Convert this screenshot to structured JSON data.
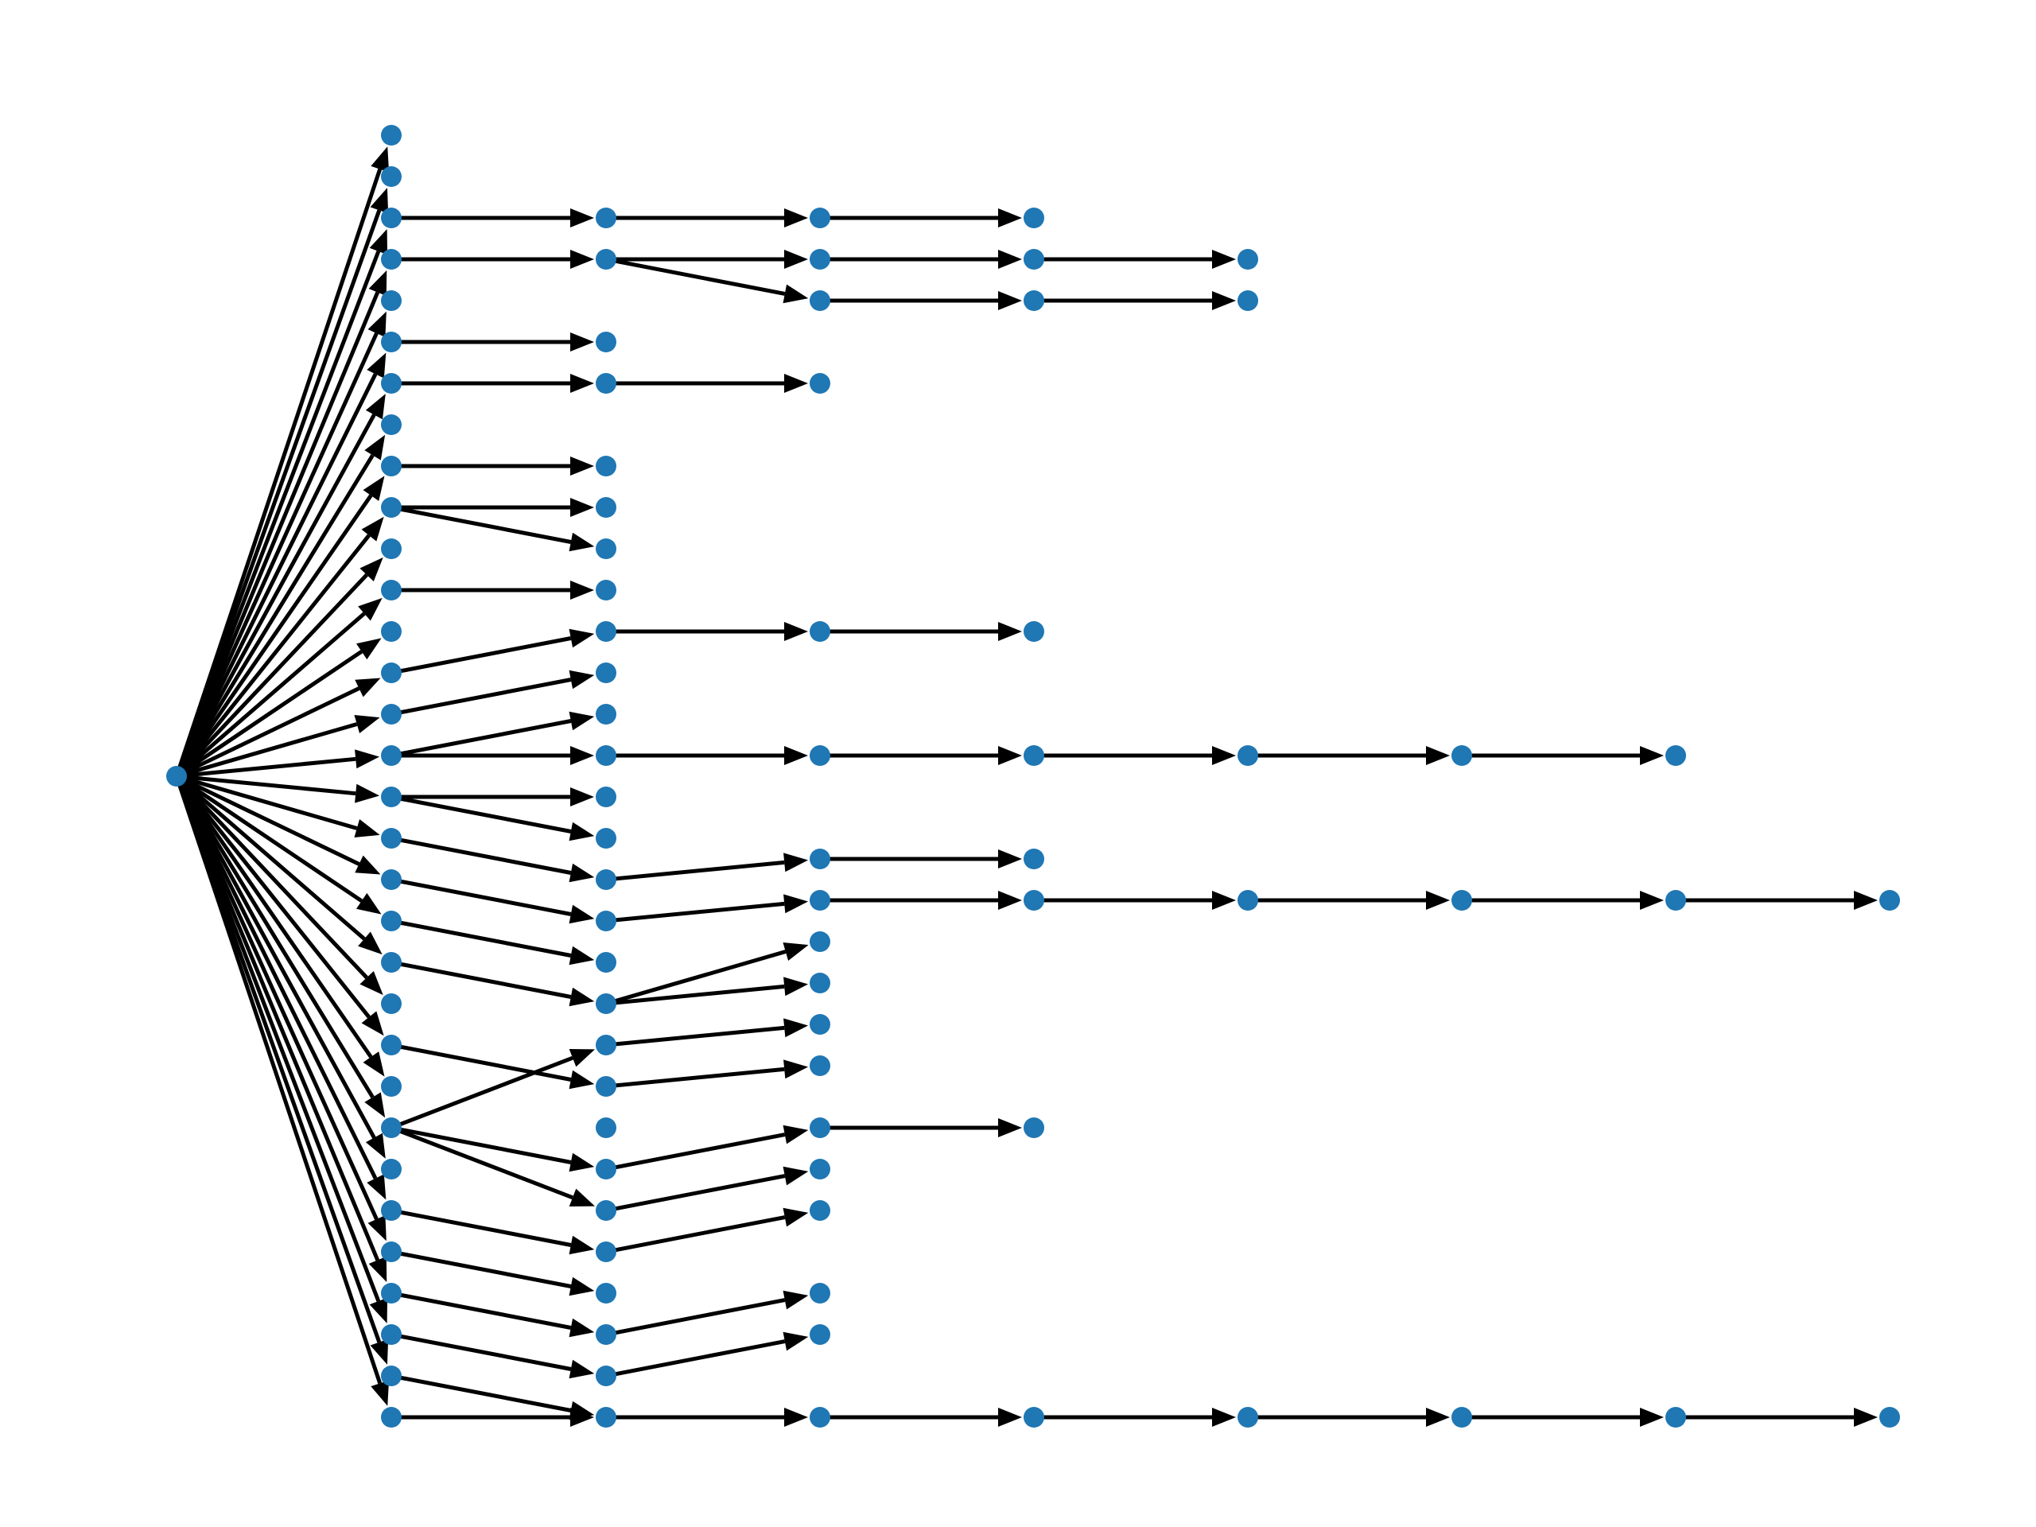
{
  "diagram": {
    "type": "directed-tree",
    "colors": {
      "node": "#1f77b4",
      "edge": "#000000",
      "background": "#ffffff"
    },
    "root": "root",
    "nodes": [
      {
        "id": "root",
        "label": "",
        "depth": 0,
        "row": 15.5
      },
      {
        "id": "d1_0",
        "label": "",
        "depth": 1,
        "row": 0
      },
      {
        "id": "d1_1",
        "label": "",
        "depth": 1,
        "row": 1
      },
      {
        "id": "d1_2",
        "label": "",
        "depth": 1,
        "row": 2
      },
      {
        "id": "d1_3",
        "label": "",
        "depth": 1,
        "row": 3
      },
      {
        "id": "d1_4",
        "label": "",
        "depth": 1,
        "row": 4
      },
      {
        "id": "d1_5",
        "label": "",
        "depth": 1,
        "row": 5
      },
      {
        "id": "d1_6",
        "label": "",
        "depth": 1,
        "row": 6
      },
      {
        "id": "d1_7",
        "label": "",
        "depth": 1,
        "row": 7
      },
      {
        "id": "d1_8",
        "label": "",
        "depth": 1,
        "row": 8
      },
      {
        "id": "d1_9",
        "label": "",
        "depth": 1,
        "row": 9
      },
      {
        "id": "d1_10",
        "label": "",
        "depth": 1,
        "row": 10
      },
      {
        "id": "d1_11",
        "label": "",
        "depth": 1,
        "row": 11
      },
      {
        "id": "d1_12",
        "label": "",
        "depth": 1,
        "row": 12
      },
      {
        "id": "d1_13",
        "label": "",
        "depth": 1,
        "row": 13
      },
      {
        "id": "d1_14",
        "label": "",
        "depth": 1,
        "row": 14
      },
      {
        "id": "d1_15",
        "label": "",
        "depth": 1,
        "row": 15
      },
      {
        "id": "d1_16",
        "label": "",
        "depth": 1,
        "row": 16
      },
      {
        "id": "d1_17",
        "label": "",
        "depth": 1,
        "row": 17
      },
      {
        "id": "d1_18",
        "label": "",
        "depth": 1,
        "row": 18
      },
      {
        "id": "d1_19",
        "label": "",
        "depth": 1,
        "row": 19
      },
      {
        "id": "d1_20",
        "label": "",
        "depth": 1,
        "row": 20
      },
      {
        "id": "d1_21",
        "label": "",
        "depth": 1,
        "row": 21
      },
      {
        "id": "d1_22",
        "label": "",
        "depth": 1,
        "row": 22
      },
      {
        "id": "d1_23",
        "label": "",
        "depth": 1,
        "row": 23
      },
      {
        "id": "d1_24",
        "label": "",
        "depth": 1,
        "row": 24
      },
      {
        "id": "d1_25",
        "label": "",
        "depth": 1,
        "row": 25
      },
      {
        "id": "d1_26",
        "label": "",
        "depth": 1,
        "row": 26
      },
      {
        "id": "d1_27",
        "label": "",
        "depth": 1,
        "row": 27
      },
      {
        "id": "d1_28",
        "label": "",
        "depth": 1,
        "row": 28
      },
      {
        "id": "d1_29",
        "label": "",
        "depth": 1,
        "row": 29
      },
      {
        "id": "d1_30",
        "label": "",
        "depth": 1,
        "row": 30
      },
      {
        "id": "d1_31",
        "label": "",
        "depth": 1,
        "row": 31
      },
      {
        "id": "d2_a",
        "label": "",
        "depth": 2,
        "row": 2
      },
      {
        "id": "d2_b",
        "label": "",
        "depth": 2,
        "row": 3
      },
      {
        "id": "d2_c",
        "label": "",
        "depth": 2,
        "row": 5
      },
      {
        "id": "d2_d",
        "label": "",
        "depth": 2,
        "row": 6
      },
      {
        "id": "d2_e",
        "label": "",
        "depth": 2,
        "row": 8
      },
      {
        "id": "d2_f",
        "label": "",
        "depth": 2,
        "row": 9
      },
      {
        "id": "d2_g",
        "label": "",
        "depth": 2,
        "row": 10
      },
      {
        "id": "d2_h",
        "label": "",
        "depth": 2,
        "row": 11
      },
      {
        "id": "d2_i",
        "label": "",
        "depth": 2,
        "row": 12
      },
      {
        "id": "d2_j",
        "label": "",
        "depth": 2,
        "row": 13
      },
      {
        "id": "d2_k",
        "label": "",
        "depth": 2,
        "row": 14
      },
      {
        "id": "d2_l",
        "label": "",
        "depth": 2,
        "row": 15
      },
      {
        "id": "d2_m",
        "label": "",
        "depth": 2,
        "row": 16
      },
      {
        "id": "d2_n",
        "label": "",
        "depth": 2,
        "row": 17
      },
      {
        "id": "d2_o",
        "label": "",
        "depth": 2,
        "row": 18
      },
      {
        "id": "d2_p",
        "label": "",
        "depth": 2,
        "row": 19
      },
      {
        "id": "d2_q",
        "label": "",
        "depth": 2,
        "row": 20
      },
      {
        "id": "d2_r",
        "label": "",
        "depth": 2,
        "row": 21
      },
      {
        "id": "d2_s",
        "label": "",
        "depth": 2,
        "row": 22
      },
      {
        "id": "d2_t",
        "label": "",
        "depth": 2,
        "row": 23
      },
      {
        "id": "d2_u",
        "label": "",
        "depth": 2,
        "row": 24
      },
      {
        "id": "d2_v",
        "label": "",
        "depth": 2,
        "row": 25
      },
      {
        "id": "d2_w",
        "label": "",
        "depth": 2,
        "row": 26
      },
      {
        "id": "d2_x",
        "label": "",
        "depth": 2,
        "row": 27
      },
      {
        "id": "d2_y",
        "label": "",
        "depth": 2,
        "row": 28
      },
      {
        "id": "d2_z",
        "label": "",
        "depth": 2,
        "row": 29
      },
      {
        "id": "d2_aa",
        "label": "",
        "depth": 2,
        "row": 30
      },
      {
        "id": "d2_ab",
        "label": "",
        "depth": 2,
        "row": 31
      },
      {
        "id": "d3_a",
        "label": "",
        "depth": 3,
        "row": 2
      },
      {
        "id": "d3_b",
        "label": "",
        "depth": 3,
        "row": 3
      },
      {
        "id": "d3_c",
        "label": "",
        "depth": 3,
        "row": 4
      },
      {
        "id": "d3_d",
        "label": "",
        "depth": 3,
        "row": 6
      },
      {
        "id": "d3_e",
        "label": "",
        "depth": 3,
        "row": 12
      },
      {
        "id": "d3_f",
        "label": "",
        "depth": 3,
        "row": 15
      },
      {
        "id": "d3_g",
        "label": "",
        "depth": 3,
        "row": 17.5
      },
      {
        "id": "d3_h",
        "label": "",
        "depth": 3,
        "row": 18.5
      },
      {
        "id": "d3_i",
        "label": "",
        "depth": 3,
        "row": 19.5
      },
      {
        "id": "d3_j",
        "label": "",
        "depth": 3,
        "row": 20.5
      },
      {
        "id": "d3_k",
        "label": "",
        "depth": 3,
        "row": 21.5
      },
      {
        "id": "d3_l",
        "label": "",
        "depth": 3,
        "row": 22.5
      },
      {
        "id": "d3_m",
        "label": "",
        "depth": 3,
        "row": 24
      },
      {
        "id": "d3_n",
        "label": "",
        "depth": 3,
        "row": 25
      },
      {
        "id": "d3_o",
        "label": "",
        "depth": 3,
        "row": 26
      },
      {
        "id": "d3_p",
        "label": "",
        "depth": 3,
        "row": 28
      },
      {
        "id": "d3_q",
        "label": "",
        "depth": 3,
        "row": 29
      },
      {
        "id": "d3_r",
        "label": "",
        "depth": 3,
        "row": 31
      },
      {
        "id": "d4_a",
        "label": "",
        "depth": 4,
        "row": 2
      },
      {
        "id": "d4_b",
        "label": "",
        "depth": 4,
        "row": 3
      },
      {
        "id": "d4_c",
        "label": "",
        "depth": 4,
        "row": 4
      },
      {
        "id": "d4_d",
        "label": "",
        "depth": 4,
        "row": 12
      },
      {
        "id": "d4_e",
        "label": "",
        "depth": 4,
        "row": 15
      },
      {
        "id": "d4_f",
        "label": "",
        "depth": 4,
        "row": 17.5
      },
      {
        "id": "d4_g",
        "label": "",
        "depth": 4,
        "row": 18.5
      },
      {
        "id": "d4_h",
        "label": "",
        "depth": 4,
        "row": 24
      },
      {
        "id": "d4_i",
        "label": "",
        "depth": 4,
        "row": 31
      },
      {
        "id": "d5_a",
        "label": "",
        "depth": 5,
        "row": 3
      },
      {
        "id": "d5_b",
        "label": "",
        "depth": 5,
        "row": 4
      },
      {
        "id": "d5_c",
        "label": "",
        "depth": 5,
        "row": 15
      },
      {
        "id": "d5_d",
        "label": "",
        "depth": 5,
        "row": 18.5
      },
      {
        "id": "d5_e",
        "label": "",
        "depth": 5,
        "row": 31
      },
      {
        "id": "d6_a",
        "label": "",
        "depth": 6,
        "row": 15
      },
      {
        "id": "d6_b",
        "label": "",
        "depth": 6,
        "row": 18.5
      },
      {
        "id": "d6_c",
        "label": "",
        "depth": 6,
        "row": 31
      },
      {
        "id": "d7_a",
        "label": "",
        "depth": 7,
        "row": 15
      },
      {
        "id": "d7_b",
        "label": "",
        "depth": 7,
        "row": 18.5
      },
      {
        "id": "d7_c",
        "label": "",
        "depth": 7,
        "row": 31
      },
      {
        "id": "d8_a",
        "label": "",
        "depth": 8,
        "row": 18.5
      },
      {
        "id": "d8_b",
        "label": "",
        "depth": 8,
        "row": 31
      }
    ],
    "edges": [
      [
        "root",
        "d1_0"
      ],
      [
        "root",
        "d1_1"
      ],
      [
        "root",
        "d1_2"
      ],
      [
        "root",
        "d1_3"
      ],
      [
        "root",
        "d1_4"
      ],
      [
        "root",
        "d1_5"
      ],
      [
        "root",
        "d1_6"
      ],
      [
        "root",
        "d1_7"
      ],
      [
        "root",
        "d1_8"
      ],
      [
        "root",
        "d1_9"
      ],
      [
        "root",
        "d1_10"
      ],
      [
        "root",
        "d1_11"
      ],
      [
        "root",
        "d1_12"
      ],
      [
        "root",
        "d1_13"
      ],
      [
        "root",
        "d1_14"
      ],
      [
        "root",
        "d1_15"
      ],
      [
        "root",
        "d1_16"
      ],
      [
        "root",
        "d1_17"
      ],
      [
        "root",
        "d1_18"
      ],
      [
        "root",
        "d1_19"
      ],
      [
        "root",
        "d1_20"
      ],
      [
        "root",
        "d1_21"
      ],
      [
        "root",
        "d1_22"
      ],
      [
        "root",
        "d1_23"
      ],
      [
        "root",
        "d1_24"
      ],
      [
        "root",
        "d1_25"
      ],
      [
        "root",
        "d1_26"
      ],
      [
        "root",
        "d1_27"
      ],
      [
        "root",
        "d1_28"
      ],
      [
        "root",
        "d1_29"
      ],
      [
        "root",
        "d1_30"
      ],
      [
        "root",
        "d1_31"
      ],
      [
        "d1_2",
        "d2_a"
      ],
      [
        "d1_3",
        "d2_b"
      ],
      [
        "d1_5",
        "d2_c"
      ],
      [
        "d1_6",
        "d2_d"
      ],
      [
        "d1_8",
        "d2_e"
      ],
      [
        "d1_9",
        "d2_f"
      ],
      [
        "d1_9",
        "d2_g"
      ],
      [
        "d1_11",
        "d2_h"
      ],
      [
        "d1_13",
        "d2_i"
      ],
      [
        "d1_14",
        "d2_j"
      ],
      [
        "d1_15",
        "d2_k"
      ],
      [
        "d1_15",
        "d2_l"
      ],
      [
        "d1_16",
        "d2_m"
      ],
      [
        "d1_16",
        "d2_n"
      ],
      [
        "d1_17",
        "d2_o"
      ],
      [
        "d1_18",
        "d2_p"
      ],
      [
        "d1_19",
        "d2_q"
      ],
      [
        "d1_20",
        "d2_r"
      ],
      [
        "d1_22",
        "d2_t"
      ],
      [
        "d1_24",
        "d2_s"
      ],
      [
        "d1_24",
        "d2_v"
      ],
      [
        "d1_24",
        "d2_w"
      ],
      [
        "d1_26",
        "d2_x"
      ],
      [
        "d1_27",
        "d2_y"
      ],
      [
        "d1_28",
        "d2_z"
      ],
      [
        "d1_29",
        "d2_aa"
      ],
      [
        "d1_30",
        "d2_ab"
      ],
      [
        "d1_31",
        "d2_ab"
      ],
      [
        "d2_a",
        "d3_a"
      ],
      [
        "d2_b",
        "d3_b"
      ],
      [
        "d2_b",
        "d3_c"
      ],
      [
        "d2_d",
        "d3_d"
      ],
      [
        "d2_i",
        "d3_e"
      ],
      [
        "d2_l",
        "d3_f"
      ],
      [
        "d2_o",
        "d3_g"
      ],
      [
        "d2_p",
        "d3_h"
      ],
      [
        "d2_r",
        "d3_i"
      ],
      [
        "d2_r",
        "d3_j"
      ],
      [
        "d2_s",
        "d3_k"
      ],
      [
        "d2_t",
        "d3_l"
      ],
      [
        "d2_v",
        "d3_m"
      ],
      [
        "d2_w",
        "d3_n"
      ],
      [
        "d2_x",
        "d3_o"
      ],
      [
        "d2_z",
        "d3_p"
      ],
      [
        "d2_aa",
        "d3_q"
      ],
      [
        "d2_ab",
        "d3_r"
      ],
      [
        "d3_a",
        "d4_a"
      ],
      [
        "d3_b",
        "d4_b"
      ],
      [
        "d3_c",
        "d4_c"
      ],
      [
        "d3_e",
        "d4_d"
      ],
      [
        "d3_f",
        "d4_e"
      ],
      [
        "d3_g",
        "d4_f"
      ],
      [
        "d3_h",
        "d4_g"
      ],
      [
        "d3_m",
        "d4_h"
      ],
      [
        "d3_r",
        "d4_i"
      ],
      [
        "d4_b",
        "d5_a"
      ],
      [
        "d4_c",
        "d5_b"
      ],
      [
        "d4_e",
        "d5_c"
      ],
      [
        "d4_g",
        "d5_d"
      ],
      [
        "d4_i",
        "d5_e"
      ],
      [
        "d5_c",
        "d6_a"
      ],
      [
        "d5_d",
        "d6_b"
      ],
      [
        "d5_e",
        "d6_c"
      ],
      [
        "d6_a",
        "d7_a"
      ],
      [
        "d6_b",
        "d7_b"
      ],
      [
        "d6_c",
        "d7_c"
      ],
      [
        "d7_b",
        "d8_a"
      ],
      [
        "d7_c",
        "d8_b"
      ]
    ]
  }
}
